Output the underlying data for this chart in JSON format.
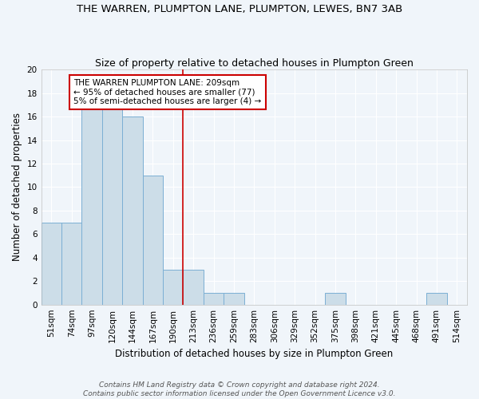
{
  "title": "THE WARREN, PLUMPTON LANE, PLUMPTON, LEWES, BN7 3AB",
  "subtitle": "Size of property relative to detached houses in Plumpton Green",
  "xlabel": "Distribution of detached houses by size in Plumpton Green",
  "ylabel": "Number of detached properties",
  "bin_labels": [
    "51sqm",
    "74sqm",
    "97sqm",
    "120sqm",
    "144sqm",
    "167sqm",
    "190sqm",
    "213sqm",
    "236sqm",
    "259sqm",
    "283sqm",
    "306sqm",
    "329sqm",
    "352sqm",
    "375sqm",
    "398sqm",
    "421sqm",
    "445sqm",
    "468sqm",
    "491sqm",
    "514sqm"
  ],
  "bar_values": [
    7,
    7,
    17,
    17,
    16,
    11,
    3,
    3,
    1,
    1,
    0,
    0,
    0,
    0,
    1,
    0,
    0,
    0,
    0,
    1,
    0
  ],
  "bar_color": "#ccdde8",
  "bar_edge_color": "#7bafd4",
  "subject_line_index": 7,
  "subject_line_color": "#cc0000",
  "subject_line_label": "THE WARREN PLUMPTON LANE: 209sqm",
  "annotation_line1": "← 95% of detached houses are smaller (77)",
  "annotation_line2": "5% of semi-detached houses are larger (4) →",
  "annotation_box_color": "#ffffff",
  "annotation_box_edge": "#cc0000",
  "ylim": [
    0,
    20
  ],
  "yticks": [
    0,
    2,
    4,
    6,
    8,
    10,
    12,
    14,
    16,
    18,
    20
  ],
  "footer1": "Contains HM Land Registry data © Crown copyright and database right 2024.",
  "footer2": "Contains public sector information licensed under the Open Government Licence v3.0.",
  "bg_color": "#f0f5fa",
  "plot_bg_color": "#f0f5fa",
  "grid_color": "#ffffff",
  "title_fontsize": 9.5,
  "subtitle_fontsize": 9,
  "axis_label_fontsize": 8.5,
  "tick_fontsize": 7.5,
  "footer_fontsize": 6.5
}
